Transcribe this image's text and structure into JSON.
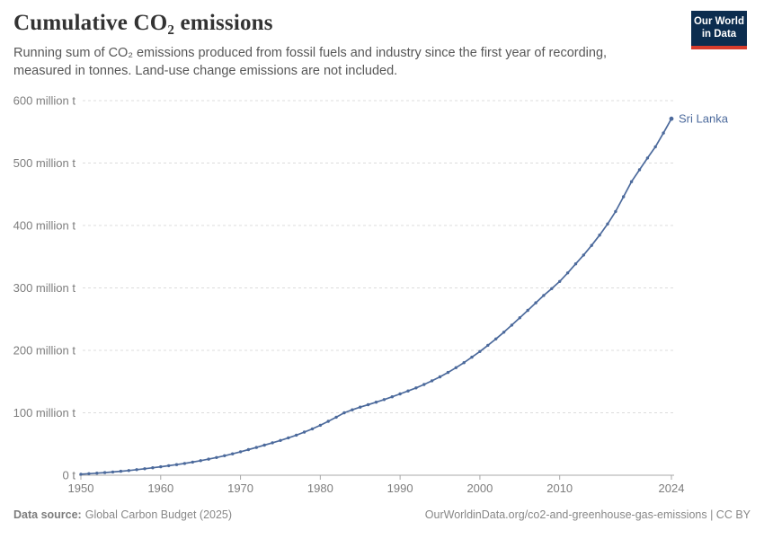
{
  "header": {
    "title": "Cumulative CO₂ emissions",
    "subtitle": "Running sum of CO₂ emissions produced from fossil fuels and industry since the first year of recording, measured in tonnes. Land-use change emissions are not included.",
    "logo": {
      "line1": "Our World",
      "line2": "in Data"
    }
  },
  "footer": {
    "source_label": "Data source:",
    "source_text": "Global Carbon Budget (2025)",
    "citation": "OurWorldinData.org/co2-and-greenhouse-gas-emissions | CC BY"
  },
  "colors": {
    "series_blue": "#4c6a9c",
    "logo_navy": "#0c2d4f",
    "logo_red": "#d73c2c",
    "grid_gray": "#dcdcdc",
    "axis_gray": "#a8a8a8",
    "tick_text": "#7d7d7d"
  },
  "chart_data": {
    "type": "line",
    "title": "Cumulative CO₂ emissions",
    "unit": "million t",
    "grid": "dashed-horizontal",
    "legend_position": "end-of-line-label",
    "xlim": [
      1950,
      2024
    ],
    "ylim": [
      0,
      600
    ],
    "x_ticks": [
      1950,
      1960,
      1970,
      1980,
      1990,
      2000,
      2010,
      2024
    ],
    "y_ticks": [
      {
        "value": 0,
        "label": "0 t"
      },
      {
        "value": 100,
        "label": "100 million t"
      },
      {
        "value": 200,
        "label": "200 million t"
      },
      {
        "value": 300,
        "label": "300 million t"
      },
      {
        "value": 400,
        "label": "400 million t"
      },
      {
        "value": 500,
        "label": "500 million t"
      },
      {
        "value": 600,
        "label": "600 million t"
      }
    ],
    "series": [
      {
        "name": "Sri Lanka",
        "color": "#4c6a9c",
        "years": [
          1950,
          1951,
          1952,
          1953,
          1954,
          1955,
          1956,
          1957,
          1958,
          1959,
          1960,
          1961,
          1962,
          1963,
          1964,
          1965,
          1966,
          1967,
          1968,
          1969,
          1970,
          1971,
          1972,
          1973,
          1974,
          1975,
          1976,
          1977,
          1978,
          1979,
          1980,
          1981,
          1982,
          1983,
          1984,
          1985,
          1986,
          1987,
          1988,
          1989,
          1990,
          1991,
          1992,
          1993,
          1994,
          1995,
          1996,
          1997,
          1998,
          1999,
          2000,
          2001,
          2002,
          2003,
          2004,
          2005,
          2006,
          2007,
          2008,
          2009,
          2010,
          2011,
          2012,
          2013,
          2014,
          2015,
          2016,
          2017,
          2018,
          2019,
          2020,
          2021,
          2022,
          2023,
          2024
        ],
        "values": [
          1.6,
          2.4,
          3.3,
          4.2,
          5.2,
          6.3,
          7.5,
          8.9,
          10.4,
          11.9,
          13.5,
          15.2,
          17.0,
          18.9,
          21.0,
          23.3,
          25.8,
          28.4,
          31.2,
          34.3,
          37.6,
          41.0,
          44.5,
          48.2,
          51.9,
          55.7,
          59.8,
          64.2,
          69.0,
          74.3,
          80.0,
          86.3,
          93.0,
          100.0,
          104.8,
          109.0,
          113.0,
          117.0,
          121.2,
          125.6,
          130.2,
          134.9,
          139.9,
          145.3,
          151.2,
          157.6,
          164.6,
          172.2,
          180.3,
          189.0,
          198.2,
          208.0,
          218.3,
          229.1,
          240.4,
          252.2,
          264.0,
          276.1,
          287.9,
          298.9,
          310.3,
          324.0,
          338.5,
          352.6,
          368.0,
          384.6,
          402.5,
          422.4,
          446.1,
          470.2,
          489.2,
          508.0,
          526.1,
          548.0,
          571.0
        ]
      }
    ]
  }
}
